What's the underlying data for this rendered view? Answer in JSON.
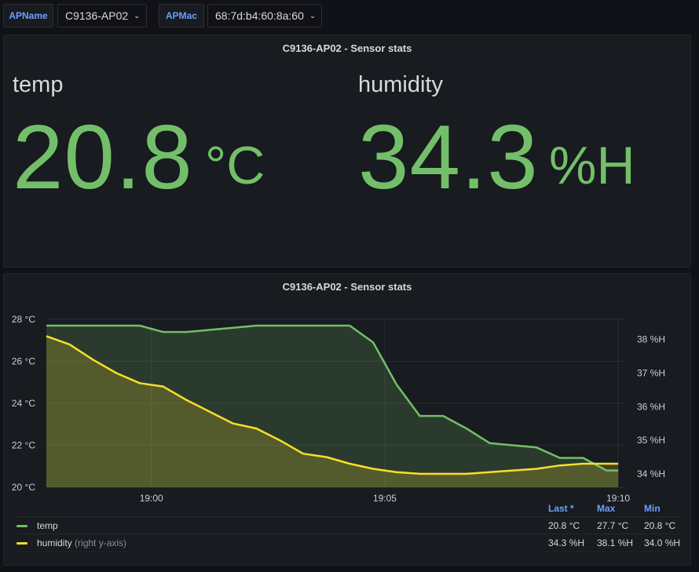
{
  "variables": [
    {
      "label": "APName",
      "value": "C9136-AP02"
    },
    {
      "label": "APMac",
      "value": "68:7d:b4:60:8a:60"
    }
  ],
  "stat_panel": {
    "title": "C9136-AP02 - Sensor stats",
    "stats": [
      {
        "name": "temp",
        "value": "20.8",
        "unit": "°C"
      },
      {
        "name": "humidity",
        "value": "34.3",
        "unit": "%H"
      }
    ]
  },
  "graph_panel": {
    "title": "C9136-AP02 - Sensor stats"
  },
  "chart_data": {
    "type": "area",
    "x_tick_labels": [
      "19:00",
      "19:05",
      "19:10"
    ],
    "x": [
      "18:57:45",
      "18:58:15",
      "18:58:45",
      "18:59:15",
      "18:59:45",
      "19:00:15",
      "19:00:45",
      "19:01:15",
      "19:01:45",
      "19:02:15",
      "19:02:45",
      "19:03:15",
      "19:03:45",
      "19:04:15",
      "19:04:45",
      "19:05:15",
      "19:05:45",
      "19:06:15",
      "19:06:45",
      "19:07:15",
      "19:07:45",
      "19:08:15",
      "19:08:45",
      "19:09:15",
      "19:09:45",
      "19:10:00"
    ],
    "series": [
      {
        "name": "temp",
        "axis": "left",
        "color": "#73bf69",
        "values": [
          27.7,
          27.7,
          27.7,
          27.7,
          27.7,
          27.4,
          27.4,
          27.5,
          27.6,
          27.7,
          27.7,
          27.7,
          27.7,
          27.7,
          26.9,
          24.9,
          23.4,
          23.4,
          22.8,
          22.1,
          22.0,
          21.9,
          21.4,
          21.4,
          20.8,
          20.8
        ]
      },
      {
        "name": "humidity",
        "axis": "right",
        "color": "#fade2a",
        "values": [
          38.1,
          37.85,
          37.4,
          37.0,
          36.7,
          36.6,
          36.2,
          35.85,
          35.5,
          35.35,
          35.0,
          34.6,
          34.5,
          34.3,
          34.15,
          34.05,
          34.0,
          34.0,
          34.0,
          34.05,
          34.1,
          34.15,
          34.25,
          34.3,
          34.3,
          34.3
        ]
      }
    ],
    "y_left": {
      "min": 20,
      "max": 28,
      "ticks": [
        "20 °C",
        "22 °C",
        "24 °C",
        "26 °C",
        "28 °C"
      ]
    },
    "y_right": {
      "min": 33.6,
      "max": 38.6,
      "ticks": [
        "34 %H",
        "35 %H",
        "36 %H",
        "37 %H",
        "38 %H"
      ]
    },
    "grid": true
  },
  "legend": {
    "headers": [
      "Last *",
      "Max",
      "Min"
    ],
    "rows": [
      {
        "name": "temp",
        "note": "",
        "color": "#73bf69",
        "last": "20.8 °C",
        "max": "27.7 °C",
        "min": "20.8 °C"
      },
      {
        "name": "humidity",
        "note": "(right y-axis)",
        "color": "#fade2a",
        "last": "34.3 %H",
        "max": "38.1 %H",
        "min": "34.0 %H"
      }
    ]
  }
}
